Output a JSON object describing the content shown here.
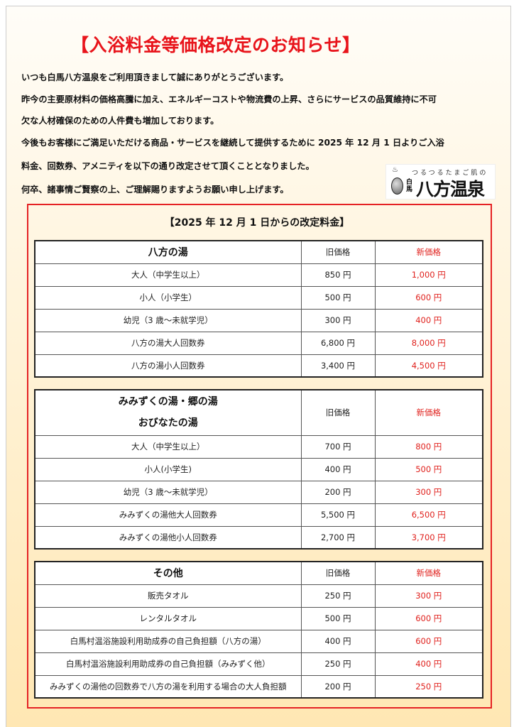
{
  "title": "【入浴料金等価格改定のお知らせ】",
  "intro": [
    "いつも白馬八方温泉をご利用頂きまして誠にありがとうございます。",
    "昨今の主要原材料の価格高騰に加え、エネルギーコストや物流費の上昇、さらにサービスの品質維持に不可",
    "欠な人材確保のための人件費も増加しております。",
    "今後もお客様にご満足いただける商品・サービスを継続して提供するために 2025 年 12 月 1 日よりご入浴",
    "料金、回数券、アメニティを以下の通り改定させて頂くこととなりました。",
    "何卒、諸事情ご賢察の上、ご理解賜りますようお願い申し上げます。"
  ],
  "logo": {
    "tagline": "つるつるたまご肌の",
    "small": "白馬",
    "name": "八方温泉"
  },
  "subtitle": "【2025 年 12 月 1 日からの改定料金】",
  "tables": [
    {
      "title": "八方の湯",
      "old_label": "旧価格",
      "new_label": "新価格",
      "rows": [
        {
          "item": "大人（中学生以上）",
          "old": "850 円",
          "new": "1,000 円"
        },
        {
          "item": "小人（小学生）",
          "old": "500 円",
          "new": "600 円"
        },
        {
          "item": "幼児（3 歳～未就学児）",
          "old": "300 円",
          "new": "400 円"
        },
        {
          "item": "八方の湯大人回数券",
          "old": "6,800 円",
          "new": "8,000 円"
        },
        {
          "item": "八方の湯小人回数券",
          "old": "3,400 円",
          "new": "4,500 円"
        }
      ]
    },
    {
      "title": "みみずくの湯・郷の湯",
      "title2": "おびなたの湯",
      "old_label": "旧価格",
      "new_label": "新価格",
      "rows": [
        {
          "item": "大人（中学生以上）",
          "old": "700 円",
          "new": "800 円"
        },
        {
          "item": "小人(小学生)",
          "old": "400 円",
          "new": "500 円"
        },
        {
          "item": "幼児（3 歳～未就学児）",
          "old": "200 円",
          "new": "300 円"
        },
        {
          "item": "みみずくの湯他大人回数券",
          "old": "5,500 円",
          "new": "6,500 円"
        },
        {
          "item": "みみずくの湯他小人回数券",
          "old": "2,700 円",
          "new": "3,700 円"
        }
      ]
    },
    {
      "title": "その他",
      "old_label": "旧価格",
      "new_label": "新価格",
      "rows": [
        {
          "item": "販売タオル",
          "old": "250 円",
          "new": "300 円"
        },
        {
          "item": "レンタルタオル",
          "old": "500 円",
          "new": "600 円"
        },
        {
          "item": "白馬村温浴施設利用助成券の自己負担額（八方の湯）",
          "old": "400 円",
          "new": "600 円"
        },
        {
          "item": "白馬村温浴施設利用助成券の自己負担額（みみずく他）",
          "old": "250 円",
          "new": "400 円"
        },
        {
          "item": "みみずくの湯他の回数券で八方の湯を利用する場合の大人負担額",
          "old": "200 円",
          "new": "250 円"
        }
      ]
    }
  ]
}
